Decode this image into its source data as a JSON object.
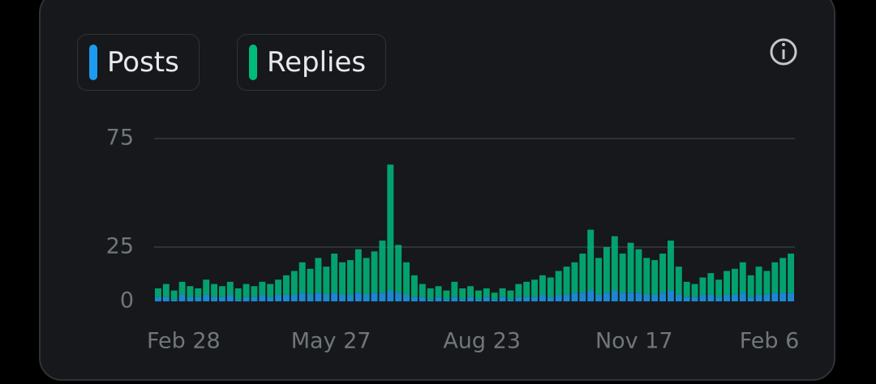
{
  "chart_data": {
    "type": "stacked_bar",
    "legend": [
      "Posts",
      "Replies"
    ],
    "categories": [
      "Feb 28",
      null,
      null,
      null,
      null,
      null,
      null,
      null,
      null,
      null,
      null,
      null,
      null,
      null,
      null,
      null,
      null,
      null,
      "May 27",
      null,
      null,
      null,
      null,
      null,
      null,
      null,
      null,
      null,
      null,
      null,
      null,
      null,
      null,
      null,
      null,
      null,
      null,
      "Aug 23",
      null,
      null,
      null,
      null,
      null,
      null,
      null,
      null,
      null,
      null,
      null,
      null,
      null,
      null,
      null,
      null,
      null,
      null,
      "Nov 17",
      null,
      null,
      null,
      null,
      null,
      null,
      null,
      null,
      null,
      null,
      null,
      null,
      null,
      null,
      null,
      null,
      null,
      "Feb 6",
      null,
      null,
      null,
      null,
      null
    ],
    "series": [
      {
        "name": "Posts",
        "color": "#1d9bf0",
        "values": [
          2,
          2,
          1,
          3,
          2,
          2,
          3,
          2,
          2,
          3,
          1,
          2,
          2,
          3,
          2,
          3,
          3,
          3,
          4,
          3,
          4,
          3,
          4,
          3,
          3,
          4,
          3,
          4,
          4,
          5,
          4,
          3,
          2,
          2,
          1,
          2,
          1,
          2,
          1,
          2,
          1,
          2,
          1,
          2,
          1,
          2,
          2,
          2,
          3,
          2,
          3,
          3,
          4,
          4,
          5,
          3,
          4,
          5,
          4,
          4,
          4,
          3,
          3,
          4,
          5,
          3,
          2,
          2,
          3,
          3,
          2,
          3,
          3,
          4,
          2,
          3,
          3,
          4,
          4,
          4
        ]
      },
      {
        "name": "Replies",
        "color": "#00ba7c",
        "values": [
          4,
          6,
          4,
          6,
          5,
          4,
          7,
          6,
          5,
          6,
          5,
          6,
          5,
          6,
          6,
          7,
          9,
          11,
          14,
          12,
          16,
          13,
          18,
          15,
          16,
          20,
          17,
          19,
          24,
          58,
          22,
          15,
          10,
          6,
          5,
          5,
          4,
          7,
          5,
          5,
          4,
          4,
          3,
          4,
          4,
          6,
          7,
          8,
          9,
          9,
          11,
          13,
          14,
          18,
          28,
          17,
          21,
          25,
          18,
          23,
          20,
          17,
          16,
          18,
          23,
          13,
          7,
          6,
          8,
          10,
          8,
          11,
          12,
          14,
          10,
          13,
          11,
          14,
          16,
          18
        ]
      }
    ],
    "ylim": [
      0,
      75
    ],
    "yticks": [
      0,
      25,
      75
    ],
    "grid": true
  }
}
